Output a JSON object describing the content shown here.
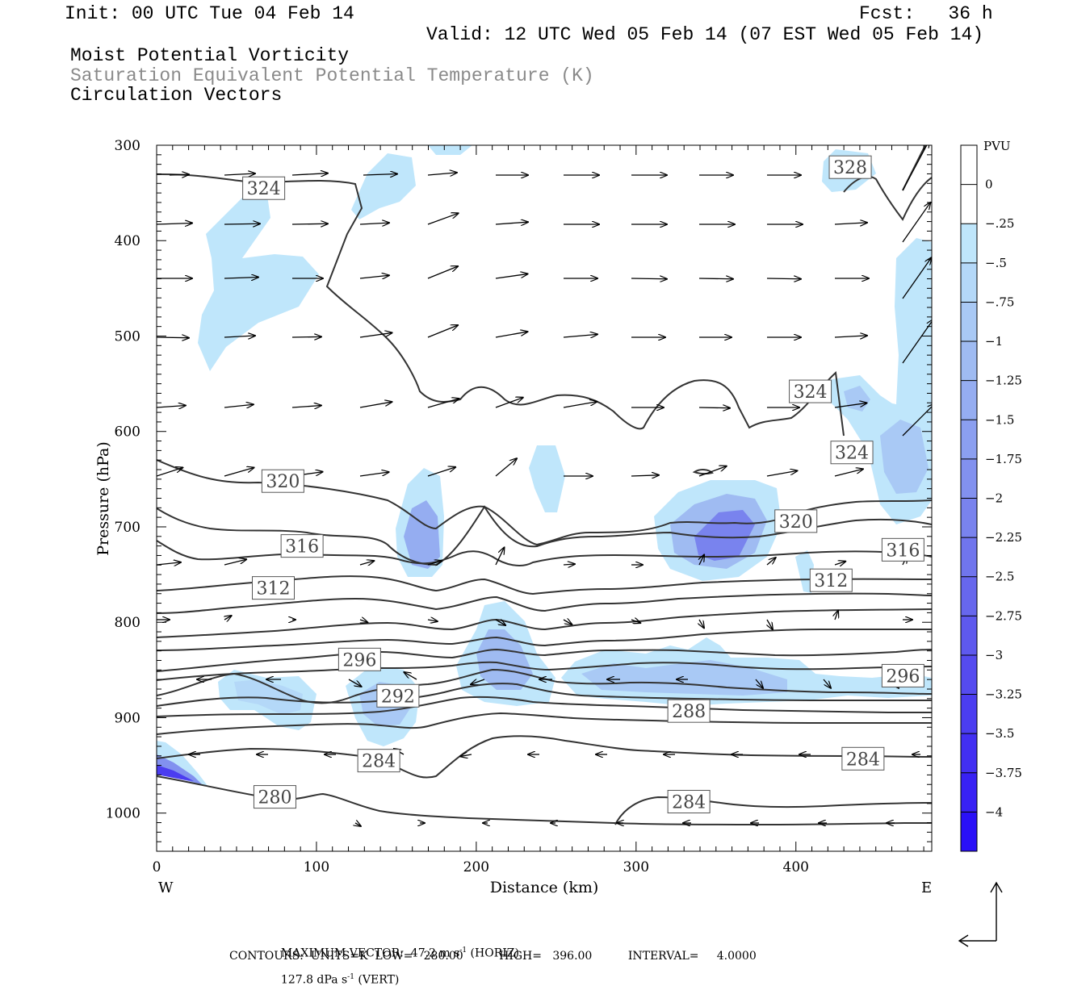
{
  "header": {
    "init": "Init: 00 UTC Tue 04 Feb 14",
    "fcst": "Fcst:   36 h",
    "valid": "Valid: 12 UTC Wed 05 Feb 14 (07 EST Wed 05 Feb 14)",
    "fields": [
      "Moist Potential Vorticity",
      "Saturation Equivalent Potential Temperature (K)",
      "Circulation Vectors"
    ]
  },
  "chart_data": {
    "type": "cross-section",
    "xlabel": "Distance (km)",
    "ylabel": "Pressure (hPa)",
    "xlim": [
      0,
      485
    ],
    "ylim": [
      1040,
      300
    ],
    "xticks": [
      0,
      100,
      200,
      300,
      400
    ],
    "yticks": [
      300,
      400,
      500,
      600,
      700,
      800,
      900,
      1000
    ],
    "x_end_labels": {
      "left": "W",
      "right": "E"
    },
    "colorbar": {
      "unit": "PVU",
      "levels": [
        "0",
        "-.25",
        "-.5",
        "-.75",
        "-1",
        "-1.25",
        "-1.5",
        "-1.75",
        "-2",
        "-2.25",
        "-2.5",
        "-2.75",
        "-3",
        "-3.25",
        "-3.5",
        "-3.75",
        "-4"
      ],
      "colors": [
        "#ffffff",
        "#bfe6fb",
        "#b4d8f8",
        "#a9c9f5",
        "#9fbbf2",
        "#95adf1",
        "#8b9ff0",
        "#8291ef",
        "#7983ee",
        "#7075ed",
        "#6767ed",
        "#5e59ee",
        "#554bef",
        "#4b3df0",
        "#422ff2",
        "#3821f4",
        "#2a10f7"
      ]
    },
    "contour_labels": [
      {
        "value": "324",
        "x": 67,
        "p": 345
      },
      {
        "value": "328",
        "x": 434,
        "p": 323
      },
      {
        "value": "324",
        "x": 409,
        "p": 558
      },
      {
        "value": "324",
        "x": 435,
        "p": 622
      },
      {
        "value": "320",
        "x": 79,
        "p": 652
      },
      {
        "value": "320",
        "x": 400,
        "p": 694
      },
      {
        "value": "316",
        "x": 91,
        "p": 720
      },
      {
        "value": "316",
        "x": 467,
        "p": 724
      },
      {
        "value": "312",
        "x": 73,
        "p": 764
      },
      {
        "value": "312",
        "x": 422,
        "p": 756
      },
      {
        "value": "296",
        "x": 127,
        "p": 839
      },
      {
        "value": "296",
        "x": 467,
        "p": 856
      },
      {
        "value": "292",
        "x": 151,
        "p": 877
      },
      {
        "value": "288",
        "x": 333,
        "p": 893
      },
      {
        "value": "284",
        "x": 139,
        "p": 945
      },
      {
        "value": "284",
        "x": 442,
        "p": 943
      },
      {
        "value": "284",
        "x": 333,
        "p": 988
      },
      {
        "value": "280",
        "x": 74,
        "p": 983
      }
    ],
    "wind_vectors": {
      "max_horizontal": "47.2 m s⁻¹",
      "max_vertical": "127.8 dPa s⁻¹"
    },
    "contours": {
      "units": "K",
      "low": 280.0,
      "high": 396.0,
      "interval": 4.0
    }
  },
  "footer": {
    "line1a": "MAXIMUM VECTOR:  47.2 m s",
    "line1b": " (HORIZ)",
    "line1c": "127.8 dPa s",
    "line1d": " (VERT)",
    "sup": "-1",
    "line2": "CONTOURS:  UNITS=K  LOW=   280.00          HIGH=   396.00          INTERVAL=     4.0000"
  }
}
